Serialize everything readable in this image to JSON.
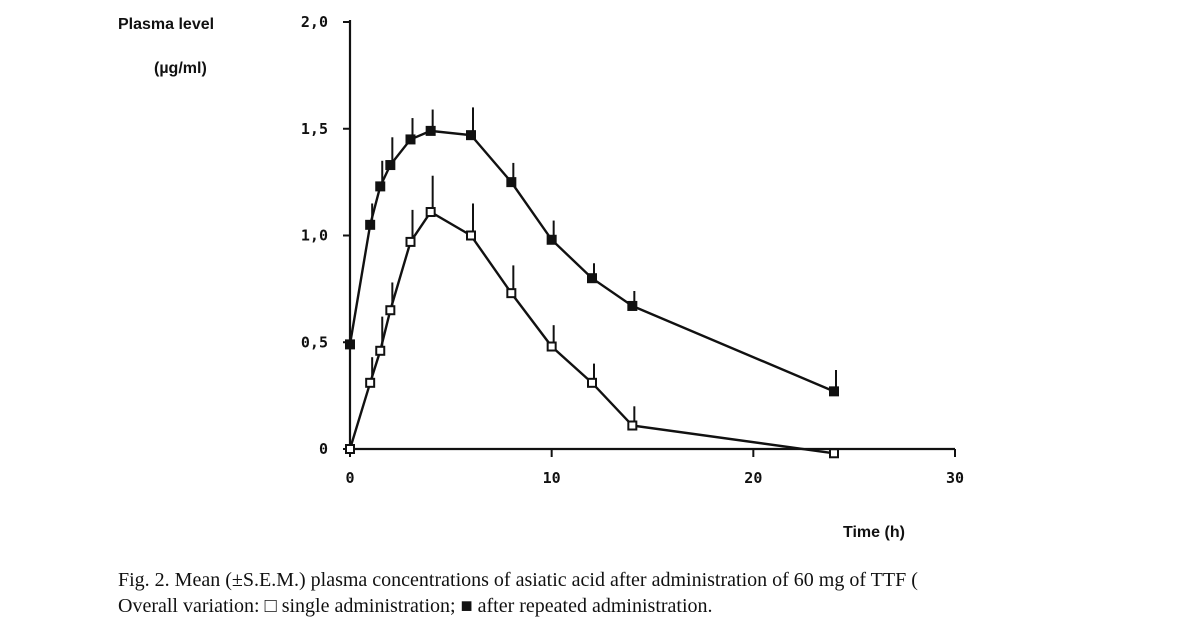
{
  "chart_data": {
    "type": "line",
    "ylabel_line1": "Plasma level",
    "ylabel_line2": "(µg/ml)",
    "xlabel": "Time (h)",
    "xlim": [
      0,
      30
    ],
    "ylim": [
      0,
      2.0
    ],
    "x_ticks": [
      "0",
      "10",
      "20",
      "30"
    ],
    "y_ticks": [
      "0",
      "0,5",
      "1,0",
      "1,5",
      "2,0"
    ],
    "grid": false,
    "series": [
      {
        "marker": "filled-square",
        "color": "#111111",
        "x": [
          0,
          1,
          1.5,
          2,
          3,
          4,
          6,
          8,
          10,
          12,
          14,
          24
        ],
        "y": [
          0.49,
          1.05,
          1.23,
          1.33,
          1.45,
          1.49,
          1.47,
          1.25,
          0.98,
          0.8,
          0.67,
          0.27
        ],
        "sem": [
          0,
          0.1,
          0.12,
          0.13,
          0.1,
          0.1,
          0.13,
          0.09,
          0.09,
          0.07,
          0.07,
          0.1
        ]
      },
      {
        "marker": "open-square",
        "color": "#111111",
        "x": [
          0,
          1,
          1.5,
          2,
          3,
          4,
          6,
          8,
          10,
          12,
          14,
          24
        ],
        "y": [
          0.0,
          0.31,
          0.46,
          0.65,
          0.97,
          1.11,
          1.0,
          0.73,
          0.48,
          0.31,
          0.11,
          -0.02
        ],
        "sem": [
          0,
          0.12,
          0.16,
          0.13,
          0.15,
          0.17,
          0.15,
          0.13,
          0.1,
          0.09,
          0.09,
          0
        ]
      }
    ]
  },
  "caption": {
    "line1": "Fig. 2. Mean (±S.E.M.) plasma concentrations of asiatic acid after administration of 60 mg of TTF (",
    "line2": "Overall variation: □ single administration; ■ after repeated administration."
  }
}
